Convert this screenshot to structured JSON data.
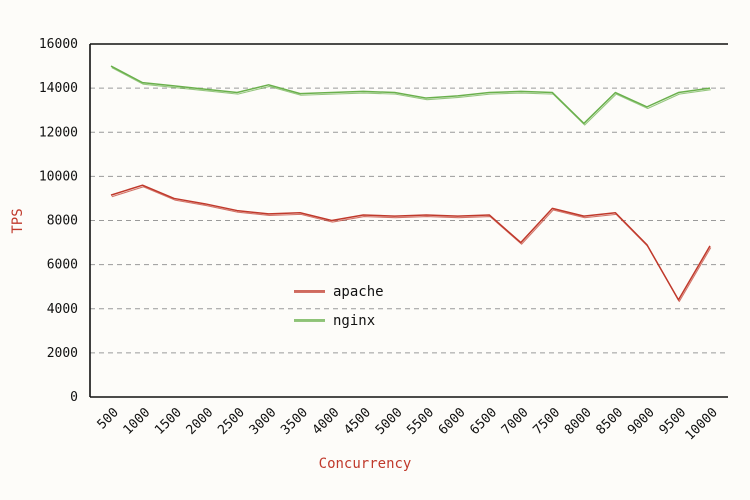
{
  "chart_data": {
    "type": "line",
    "xlabel": "Concurrency",
    "ylabel": "TPS",
    "ylim": [
      0,
      16000
    ],
    "yticks": [
      0,
      2000,
      4000,
      6000,
      8000,
      10000,
      12000,
      14000,
      16000
    ],
    "categories": [
      "500",
      "1000",
      "1500",
      "2000",
      "2500",
      "3000",
      "3500",
      "4000",
      "4500",
      "5000",
      "5500",
      "6000",
      "6500",
      "7000",
      "7500",
      "8000",
      "8500",
      "9000",
      "9500",
      "10000"
    ],
    "grid": true,
    "legend_position": "center-left",
    "series": [
      {
        "name": "apache",
        "color": "#c0392b",
        "values": [
          9150,
          9600,
          9000,
          8750,
          8450,
          8300,
          8350,
          8000,
          8250,
          8200,
          8250,
          8200,
          8250,
          7000,
          8550,
          8200,
          8350,
          6900,
          4400,
          6850
        ]
      },
      {
        "name": "nginx",
        "color": "#6ab04c",
        "values": [
          15000,
          14250,
          14100,
          13950,
          13800,
          14150,
          13750,
          13800,
          13850,
          13800,
          13550,
          13650,
          13800,
          13850,
          13800,
          12400,
          13800,
          13150,
          13800,
          14000
        ]
      }
    ]
  }
}
